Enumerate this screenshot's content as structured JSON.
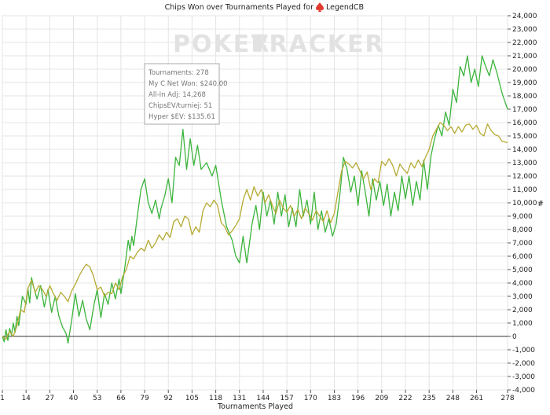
{
  "colors": {
    "chips_line": "#3cb43c",
    "allin_line": "#b4aa32",
    "grid": "#e4e4e4",
    "axis": "#555555",
    "watermark": "#e2e2e2",
    "logo_red": "#e03a2f"
  },
  "header": {
    "title": "Chips Won over Tournaments Played for",
    "player": "LegendCB",
    "logo_icon": "spade-flame-logo-icon"
  },
  "watermark": {
    "part1": "POKER",
    "part2": "TRACKER"
  },
  "tooltip": {
    "lines": [
      "Tournaments: 278",
      "My C Net Won: $240.00",
      "All-In Adj: 14,268",
      "ChipsEV/turniej: 51",
      "Hyper $EV: $135.61"
    ]
  },
  "chart_data": {
    "type": "line",
    "title": "Chips Won over Tournaments Played for LegendCB",
    "xlabel": "Tournaments Played",
    "ylabel": "#",
    "xlim": [
      1,
      278
    ],
    "ylim": [
      -4000,
      24000
    ],
    "x_ticks": [
      1,
      14,
      27,
      40,
      53,
      66,
      79,
      92,
      105,
      118,
      131,
      144,
      157,
      170,
      183,
      196,
      209,
      222,
      235,
      248,
      261,
      278
    ],
    "y_ticks": [
      -4000,
      -3000,
      -2000,
      -1000,
      0,
      1000,
      2000,
      3000,
      4000,
      5000,
      6000,
      7000,
      8000,
      9000,
      10000,
      11000,
      12000,
      13000,
      14000,
      15000,
      16000,
      17000,
      18000,
      19000,
      20000,
      21000,
      22000,
      23000,
      24000
    ],
    "y_tick_labels": [
      "-4,000",
      "-3,000",
      "-2,000",
      "-1,000",
      "0",
      "1,000",
      "2,000",
      "3,000",
      "4,000",
      "5,000",
      "6,000",
      "7,000",
      "8,000",
      "9,000",
      "10,000",
      "11,000",
      "12,000",
      "13,000",
      "14,000",
      "15,000",
      "16,000",
      "17,000",
      "18,000",
      "19,000",
      "20,000",
      "21,000",
      "22,000",
      "23,000",
      "24,000"
    ],
    "grid": true,
    "series": [
      {
        "points": [
          [
            1,
            0
          ],
          [
            2,
            -400
          ],
          [
            3,
            500
          ],
          [
            4,
            -300
          ],
          [
            5,
            600
          ],
          [
            6,
            100
          ],
          [
            7,
            1000
          ],
          [
            8,
            300
          ],
          [
            9,
            1500
          ],
          [
            10,
            800
          ],
          [
            12,
            3000
          ],
          [
            14,
            2400
          ],
          [
            15,
            3600
          ],
          [
            16,
            2500
          ],
          [
            17,
            4400
          ],
          [
            18,
            3800
          ],
          [
            20,
            2800
          ],
          [
            22,
            3800
          ],
          [
            24,
            2200
          ],
          [
            26,
            3500
          ],
          [
            28,
            1800
          ],
          [
            30,
            3000
          ],
          [
            32,
            1500
          ],
          [
            34,
            700
          ],
          [
            36,
            200
          ],
          [
            37,
            -500
          ],
          [
            39,
            1200
          ],
          [
            41,
            3200
          ],
          [
            43,
            1500
          ],
          [
            45,
            2700
          ],
          [
            47,
            1300
          ],
          [
            49,
            500
          ],
          [
            51,
            2200
          ],
          [
            53,
            3500
          ],
          [
            55,
            1400
          ],
          [
            57,
            3200
          ],
          [
            59,
            2400
          ],
          [
            61,
            4000
          ],
          [
            63,
            2800
          ],
          [
            65,
            4300
          ],
          [
            66,
            3200
          ],
          [
            68,
            5000
          ],
          [
            70,
            7200
          ],
          [
            71,
            6400
          ],
          [
            72,
            7500
          ],
          [
            73,
            6800
          ],
          [
            75,
            9000
          ],
          [
            77,
            11000
          ],
          [
            79,
            11800
          ],
          [
            81,
            10000
          ],
          [
            83,
            9200
          ],
          [
            85,
            10200
          ],
          [
            87,
            8800
          ],
          [
            88,
            9600
          ],
          [
            90,
            10500
          ],
          [
            92,
            11800
          ],
          [
            94,
            10000
          ],
          [
            96,
            13400
          ],
          [
            98,
            12800
          ],
          [
            100,
            15500
          ],
          [
            102,
            12500
          ],
          [
            104,
            14800
          ],
          [
            106,
            12800
          ],
          [
            108,
            14300
          ],
          [
            110,
            12500
          ],
          [
            113,
            13000
          ],
          [
            116,
            12000
          ],
          [
            118,
            12800
          ],
          [
            121,
            10200
          ],
          [
            124,
            8200
          ],
          [
            127,
            7200
          ],
          [
            129,
            6000
          ],
          [
            131,
            5500
          ],
          [
            133,
            7500
          ],
          [
            135,
            5500
          ],
          [
            138,
            8500
          ],
          [
            140,
            9800
          ],
          [
            142,
            8000
          ],
          [
            144,
            10800
          ],
          [
            146,
            9000
          ],
          [
            148,
            10200
          ],
          [
            150,
            8400
          ],
          [
            152,
            10800
          ],
          [
            154,
            9000
          ],
          [
            156,
            10600
          ],
          [
            158,
            8200
          ],
          [
            160,
            9600
          ],
          [
            162,
            8200
          ],
          [
            164,
            11000
          ],
          [
            166,
            9000
          ],
          [
            168,
            10200
          ],
          [
            170,
            8400
          ],
          [
            172,
            10800
          ],
          [
            174,
            8000
          ],
          [
            176,
            9400
          ],
          [
            178,
            7800
          ],
          [
            180,
            8800
          ],
          [
            182,
            7500
          ],
          [
            184,
            8400
          ],
          [
            186,
            10500
          ],
          [
            188,
            13400
          ],
          [
            190,
            12500
          ],
          [
            192,
            10800
          ],
          [
            194,
            12000
          ],
          [
            196,
            9800
          ],
          [
            198,
            12400
          ],
          [
            200,
            10800
          ],
          [
            202,
            9000
          ],
          [
            204,
            11800
          ],
          [
            206,
            10200
          ],
          [
            208,
            11600
          ],
          [
            210,
            9800
          ],
          [
            212,
            11400
          ],
          [
            214,
            9000
          ],
          [
            216,
            10800
          ],
          [
            218,
            9400
          ],
          [
            220,
            12000
          ],
          [
            222,
            10300
          ],
          [
            224,
            12000
          ],
          [
            226,
            9800
          ],
          [
            228,
            11600
          ],
          [
            230,
            10200
          ],
          [
            232,
            13200
          ],
          [
            234,
            11000
          ],
          [
            236,
            13500
          ],
          [
            238,
            14800
          ],
          [
            240,
            15800
          ],
          [
            242,
            15000
          ],
          [
            244,
            16800
          ],
          [
            246,
            15800
          ],
          [
            248,
            18500
          ],
          [
            250,
            17500
          ],
          [
            252,
            20200
          ],
          [
            254,
            19500
          ],
          [
            256,
            21000
          ],
          [
            258,
            19000
          ],
          [
            260,
            20000
          ],
          [
            262,
            18700
          ],
          [
            264,
            21000
          ],
          [
            266,
            20200
          ],
          [
            268,
            19500
          ],
          [
            270,
            20700
          ],
          [
            272,
            19800
          ],
          [
            275,
            18200
          ],
          [
            278,
            17000
          ]
        ]
      },
      {
        "points": [
          [
            1,
            0
          ],
          [
            3,
            -200
          ],
          [
            5,
            400
          ],
          [
            7,
            0
          ],
          [
            9,
            800
          ],
          [
            11,
            2000
          ],
          [
            13,
            1800
          ],
          [
            15,
            3600
          ],
          [
            17,
            4200
          ],
          [
            19,
            3300
          ],
          [
            21,
            3800
          ],
          [
            23,
            3500
          ],
          [
            25,
            3000
          ],
          [
            27,
            3800
          ],
          [
            29,
            3200
          ],
          [
            31,
            2700
          ],
          [
            33,
            3300
          ],
          [
            35,
            3000
          ],
          [
            37,
            2600
          ],
          [
            39,
            3400
          ],
          [
            41,
            3900
          ],
          [
            43,
            4500
          ],
          [
            45,
            5000
          ],
          [
            47,
            5400
          ],
          [
            49,
            5200
          ],
          [
            51,
            4500
          ],
          [
            53,
            3500
          ],
          [
            55,
            3700
          ],
          [
            57,
            3000
          ],
          [
            59,
            3300
          ],
          [
            61,
            3200
          ],
          [
            63,
            4000
          ],
          [
            65,
            3500
          ],
          [
            67,
            4500
          ],
          [
            69,
            5000
          ],
          [
            71,
            6000
          ],
          [
            73,
            5800
          ],
          [
            75,
            6300
          ],
          [
            77,
            6600
          ],
          [
            79,
            6400
          ],
          [
            81,
            7200
          ],
          [
            83,
            6600
          ],
          [
            85,
            7000
          ],
          [
            87,
            7600
          ],
          [
            89,
            7200
          ],
          [
            91,
            7800
          ],
          [
            93,
            7400
          ],
          [
            95,
            8600
          ],
          [
            97,
            8800
          ],
          [
            99,
            8200
          ],
          [
            101,
            9000
          ],
          [
            103,
            8800
          ],
          [
            105,
            7600
          ],
          [
            107,
            8200
          ],
          [
            109,
            7800
          ],
          [
            111,
            9400
          ],
          [
            113,
            10000
          ],
          [
            115,
            9700
          ],
          [
            117,
            10200
          ],
          [
            119,
            9800
          ],
          [
            121,
            8500
          ],
          [
            123,
            8200
          ],
          [
            125,
            7600
          ],
          [
            127,
            7900
          ],
          [
            129,
            8300
          ],
          [
            131,
            8800
          ],
          [
            133,
            10200
          ],
          [
            135,
            11000
          ],
          [
            137,
            10200
          ],
          [
            139,
            11200
          ],
          [
            141,
            10500
          ],
          [
            143,
            11000
          ],
          [
            145,
            10000
          ],
          [
            147,
            10600
          ],
          [
            149,
            9800
          ],
          [
            151,
            9200
          ],
          [
            153,
            10200
          ],
          [
            155,
            9600
          ],
          [
            157,
            9300
          ],
          [
            159,
            9800
          ],
          [
            161,
            9000
          ],
          [
            163,
            9500
          ],
          [
            165,
            8800
          ],
          [
            167,
            9600
          ],
          [
            169,
            9200
          ],
          [
            171,
            8700
          ],
          [
            173,
            9400
          ],
          [
            175,
            9000
          ],
          [
            177,
            8600
          ],
          [
            179,
            9400
          ],
          [
            181,
            8500
          ],
          [
            183,
            9200
          ],
          [
            185,
            10800
          ],
          [
            187,
            12400
          ],
          [
            189,
            13100
          ],
          [
            191,
            12900
          ],
          [
            193,
            12600
          ],
          [
            195,
            13000
          ],
          [
            197,
            12400
          ],
          [
            199,
            11800
          ],
          [
            201,
            12300
          ],
          [
            203,
            11000
          ],
          [
            205,
            11800
          ],
          [
            207,
            11500
          ],
          [
            209,
            13100
          ],
          [
            211,
            12800
          ],
          [
            213,
            13300
          ],
          [
            215,
            12800
          ],
          [
            217,
            12000
          ],
          [
            219,
            12900
          ],
          [
            221,
            12500
          ],
          [
            223,
            12200
          ],
          [
            225,
            13000
          ],
          [
            227,
            12600
          ],
          [
            229,
            13200
          ],
          [
            231,
            12700
          ],
          [
            233,
            13400
          ],
          [
            235,
            14000
          ],
          [
            237,
            15000
          ],
          [
            239,
            15500
          ],
          [
            241,
            16000
          ],
          [
            243,
            15800
          ],
          [
            245,
            15400
          ],
          [
            247,
            15700
          ],
          [
            249,
            15200
          ],
          [
            251,
            15700
          ],
          [
            253,
            15300
          ],
          [
            255,
            15800
          ],
          [
            257,
            15900
          ],
          [
            259,
            15500
          ],
          [
            261,
            15800
          ],
          [
            263,
            15200
          ],
          [
            265,
            15000
          ],
          [
            267,
            15900
          ],
          [
            269,
            15400
          ],
          [
            271,
            15100
          ],
          [
            273,
            15000
          ],
          [
            275,
            14600
          ],
          [
            278,
            14500
          ]
        ]
      }
    ]
  }
}
